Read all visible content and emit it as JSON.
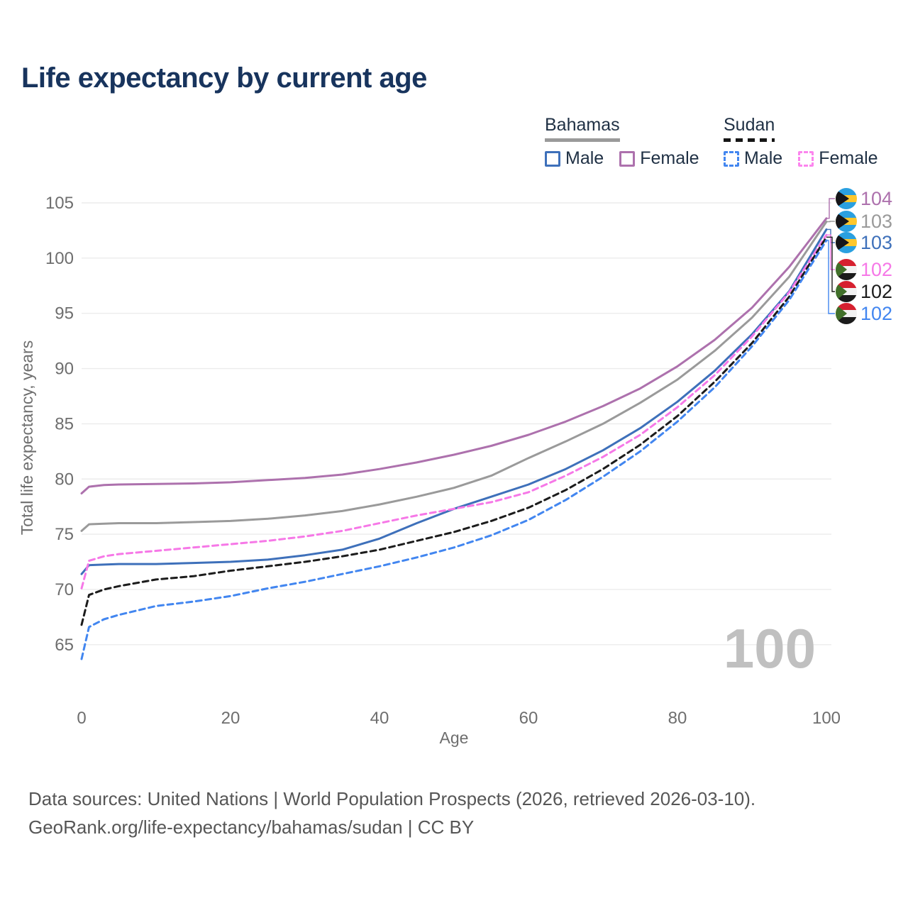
{
  "title": "Life expectancy by current age",
  "watermark": "100",
  "legend": {
    "groups": [
      {
        "label": "Bahamas",
        "line_style": "solid",
        "underline_color": "#9a9a9a",
        "items": [
          {
            "label": "Male",
            "color": "#3e70ba",
            "dash": false
          },
          {
            "label": "Female",
            "color": "#ad71ad",
            "dash": false
          }
        ]
      },
      {
        "label": "Sudan",
        "line_style": "dashed",
        "underline_color": "#161616",
        "items": [
          {
            "label": "Male",
            "color": "#4286f0",
            "dash": true
          },
          {
            "label": "Female",
            "color": "#fc85ee",
            "dash": true
          }
        ]
      }
    ]
  },
  "footer": {
    "line1": "Data sources: United Nations | World Population Prospects (2026, retrieved 2026-03-10).",
    "line2": "GeoRank.org/life-expectancy/bahamas/sudan | CC BY"
  },
  "chart_data": {
    "type": "line",
    "title": "Life expectancy by current age",
    "xlabel": "Age",
    "ylabel": "Total life expectancy, years",
    "x_ticks": [
      0,
      20,
      40,
      60,
      80,
      100
    ],
    "y_ticks": [
      65,
      70,
      75,
      80,
      85,
      90,
      95,
      100,
      105
    ],
    "xlim": [
      0,
      100
    ],
    "ylim": [
      63,
      106
    ],
    "grid": true,
    "legend_position": "top-right",
    "x": [
      0,
      1,
      3,
      5,
      10,
      15,
      20,
      25,
      30,
      35,
      40,
      45,
      50,
      55,
      60,
      65,
      70,
      75,
      80,
      85,
      90,
      95,
      100
    ],
    "series": [
      {
        "name": "Bahamas Female",
        "country": "Bahamas",
        "sex": "Female",
        "color": "#ad71ad",
        "dash": false,
        "flag": "bahamas",
        "end_label": "104",
        "values": [
          78.7,
          79.3,
          79.45,
          79.5,
          79.55,
          79.6,
          79.7,
          79.9,
          80.1,
          80.4,
          80.9,
          81.5,
          82.2,
          83.0,
          84.0,
          85.2,
          86.6,
          88.2,
          90.2,
          92.6,
          95.5,
          99.2,
          103.6
        ]
      },
      {
        "name": "Bahamas Both sexes",
        "country": "Bahamas",
        "sex": "Both",
        "color": "#9a9a9a",
        "dash": false,
        "flag": "bahamas",
        "end_label": "103",
        "values": [
          75.3,
          75.9,
          75.95,
          76.0,
          76.0,
          76.1,
          76.2,
          76.4,
          76.7,
          77.1,
          77.7,
          78.4,
          79.2,
          80.3,
          81.9,
          83.4,
          85.0,
          86.9,
          89.0,
          91.6,
          94.6,
          98.3,
          103.3
        ]
      },
      {
        "name": "Bahamas Male",
        "country": "Bahamas",
        "sex": "Male",
        "color": "#3e70ba",
        "dash": false,
        "flag": "bahamas",
        "end_label": "103",
        "values": [
          71.4,
          72.2,
          72.25,
          72.3,
          72.3,
          72.4,
          72.5,
          72.7,
          73.1,
          73.6,
          74.6,
          76.0,
          77.3,
          78.4,
          79.5,
          80.9,
          82.6,
          84.6,
          87.0,
          89.8,
          93.1,
          97.0,
          102.6
        ]
      },
      {
        "name": "Sudan Female",
        "country": "Sudan",
        "sex": "Female",
        "color": "#f678e7",
        "dash": true,
        "flag": "sudan",
        "end_label": "102",
        "values": [
          70.1,
          72.6,
          73.0,
          73.2,
          73.5,
          73.8,
          74.1,
          74.4,
          74.8,
          75.3,
          76.0,
          76.7,
          77.3,
          77.9,
          78.8,
          80.3,
          82.0,
          84.0,
          86.5,
          89.4,
          92.9,
          96.9,
          102.1
        ]
      },
      {
        "name": "Sudan Both sexes",
        "country": "Sudan",
        "sex": "Both",
        "color": "#1c1c1c",
        "dash": true,
        "flag": "sudan",
        "end_label": "102",
        "values": [
          66.8,
          69.5,
          70.0,
          70.3,
          70.9,
          71.2,
          71.7,
          72.1,
          72.5,
          73.0,
          73.6,
          74.4,
          75.2,
          76.2,
          77.4,
          79.0,
          80.9,
          83.1,
          85.7,
          88.8,
          92.3,
          96.5,
          101.9
        ]
      },
      {
        "name": "Sudan Male",
        "country": "Sudan",
        "sex": "Male",
        "color": "#4286f0",
        "dash": true,
        "flag": "sudan",
        "end_label": "102",
        "values": [
          63.7,
          66.6,
          67.3,
          67.7,
          68.5,
          68.9,
          69.4,
          70.1,
          70.7,
          71.4,
          72.1,
          72.9,
          73.8,
          74.9,
          76.3,
          78.1,
          80.2,
          82.5,
          85.2,
          88.3,
          92.0,
          96.2,
          101.6
        ]
      }
    ],
    "flag_colors": {
      "bahamas": {
        "stripe": "#2aa0e0",
        "mid": "#ffc72c",
        "triangle": "#16161a"
      },
      "sudan": {
        "top": "#d6202f",
        "mid": "#f2f2f2",
        "bottom": "#1b1b1b",
        "triangle": "#41702a"
      }
    }
  }
}
